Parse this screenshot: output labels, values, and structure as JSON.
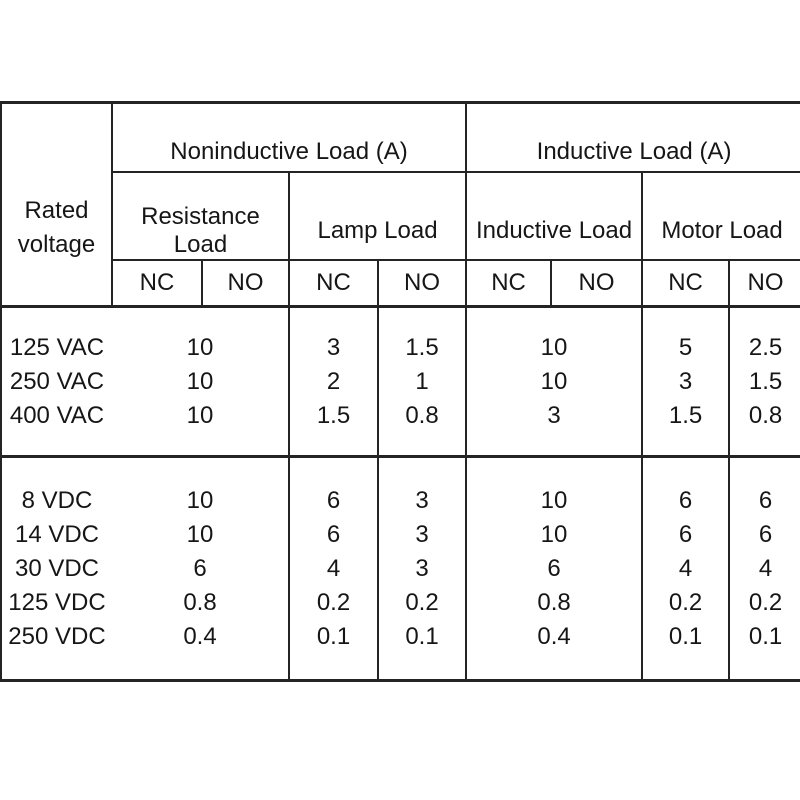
{
  "colors": {
    "background": "#ffffff",
    "text": "#161616",
    "line": "#242424"
  },
  "table": {
    "rated_voltage_label": "Rated voltage",
    "groups": [
      {
        "label": "Noninductive Load (A)",
        "subgroups": [
          {
            "label": "Resistance Load"
          },
          {
            "label": "Lamp Load"
          }
        ]
      },
      {
        "label": "Inductive Load (A)",
        "subgroups": [
          {
            "label": "Inductive Load"
          },
          {
            "label": "Motor Load"
          }
        ]
      }
    ],
    "contact_row": [
      "NC",
      "NO",
      "NC",
      "NO",
      "NC",
      "NO",
      "NC",
      "NO"
    ],
    "body": {
      "vac": {
        "voltages": [
          "125 VAC",
          "250 VAC",
          "400 VAC"
        ],
        "resistance": [
          "10",
          "10",
          "10"
        ],
        "lamp_nc": [
          "3",
          "2",
          "1.5"
        ],
        "lamp_no": [
          "1.5",
          "1",
          "0.8"
        ],
        "inductive": [
          "10",
          "10",
          "3"
        ],
        "motor_nc": [
          "5",
          "3",
          "1.5"
        ],
        "motor_no": [
          "2.5",
          "1.5",
          "0.8"
        ]
      },
      "vdc": {
        "voltages": [
          "8 VDC",
          "14 VDC",
          "30 VDC",
          "125 VDC",
          "250 VDC"
        ],
        "resistance": [
          "10",
          "10",
          "6",
          "0.8",
          "0.4"
        ],
        "lamp_nc": [
          "6",
          "6",
          "4",
          "0.2",
          "0.1"
        ],
        "lamp_no": [
          "3",
          "3",
          "3",
          "0.2",
          "0.1"
        ],
        "inductive": [
          "10",
          "10",
          "6",
          "0.8",
          "0.4"
        ],
        "motor_nc": [
          "6",
          "6",
          "4",
          "0.2",
          "0.1"
        ],
        "motor_no": [
          "6",
          "6",
          "4",
          "0.2",
          "0.1"
        ]
      }
    }
  }
}
